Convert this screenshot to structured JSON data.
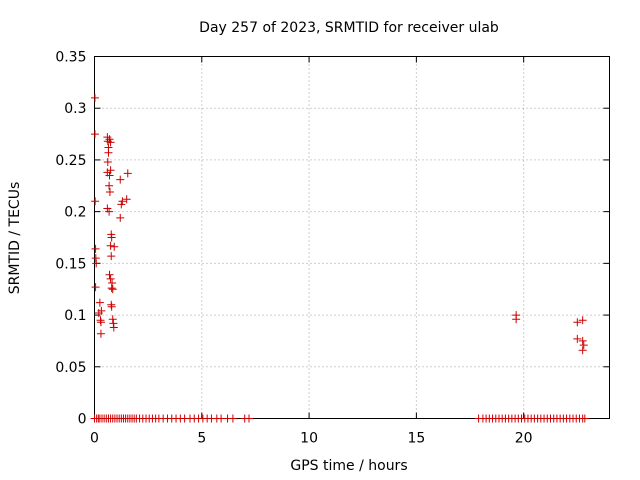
{
  "chart_data": {
    "type": "scatter",
    "title": "Day 257 of 2023, SRMTID for receiver ulab",
    "xlabel": "GPS time / hours",
    "ylabel": "SRMTID / TECUs",
    "xlim": [
      0,
      24
    ],
    "ylim": [
      0,
      0.35
    ],
    "xticks": [
      0,
      5,
      10,
      15,
      20
    ],
    "yticks": [
      0,
      0.05,
      0.1,
      0.15,
      0.2,
      0.25,
      0.3,
      0.35
    ],
    "ytick_labels": [
      "0",
      "0.05",
      "0.1",
      "0.15",
      "0.2",
      "0.25",
      "0.3",
      "0.35"
    ],
    "grid": true,
    "marker": "plus",
    "color": "#cc0000",
    "points": [
      [
        0.02,
        0.31
      ],
      [
        0.02,
        0.275
      ],
      [
        0.03,
        0.21
      ],
      [
        0.05,
        0.164
      ],
      [
        0.06,
        0.155
      ],
      [
        0.08,
        0.15
      ],
      [
        0.05,
        0.127
      ],
      [
        0.2,
        0.102
      ],
      [
        0.25,
        0.112
      ],
      [
        0.28,
        0.095
      ],
      [
        0.3,
        0.093
      ],
      [
        0.3,
        0.082
      ],
      [
        0.32,
        0.104
      ],
      [
        0.6,
        0.272
      ],
      [
        0.62,
        0.268
      ],
      [
        0.65,
        0.262
      ],
      [
        0.65,
        0.257
      ],
      [
        0.62,
        0.248
      ],
      [
        0.6,
        0.238
      ],
      [
        0.7,
        0.235
      ],
      [
        0.68,
        0.225
      ],
      [
        0.72,
        0.219
      ],
      [
        0.6,
        0.203
      ],
      [
        0.68,
        0.2
      ],
      [
        0.7,
        0.27
      ],
      [
        0.75,
        0.267
      ],
      [
        0.75,
        0.24
      ],
      [
        0.78,
        0.178
      ],
      [
        0.8,
        0.175
      ],
      [
        0.75,
        0.167
      ],
      [
        0.78,
        0.157
      ],
      [
        0.7,
        0.139
      ],
      [
        0.75,
        0.135
      ],
      [
        0.82,
        0.131
      ],
      [
        0.8,
        0.126
      ],
      [
        0.85,
        0.125
      ],
      [
        0.78,
        0.11
      ],
      [
        0.8,
        0.108
      ],
      [
        0.85,
        0.096
      ],
      [
        0.88,
        0.092
      ],
      [
        0.9,
        0.088
      ],
      [
        0.92,
        0.166
      ],
      [
        1.2,
        0.231
      ],
      [
        1.25,
        0.207
      ],
      [
        1.3,
        0.21
      ],
      [
        1.2,
        0.194
      ],
      [
        1.55,
        0.237
      ],
      [
        1.5,
        0.212
      ],
      [
        19.65,
        0.1
      ],
      [
        19.65,
        0.096
      ],
      [
        22.5,
        0.093
      ],
      [
        22.75,
        0.095
      ],
      [
        22.5,
        0.077
      ],
      [
        22.75,
        0.075
      ],
      [
        22.8,
        0.071
      ],
      [
        22.75,
        0.066
      ],
      [
        0.0,
        0
      ],
      [
        0.1,
        0
      ],
      [
        0.18,
        0
      ],
      [
        0.25,
        0
      ],
      [
        0.35,
        0
      ],
      [
        0.45,
        0
      ],
      [
        0.55,
        0
      ],
      [
        0.65,
        0
      ],
      [
        0.75,
        0
      ],
      [
        0.85,
        0
      ],
      [
        0.95,
        0
      ],
      [
        1.05,
        0
      ],
      [
        1.15,
        0
      ],
      [
        1.25,
        0
      ],
      [
        1.35,
        0
      ],
      [
        1.45,
        0
      ],
      [
        1.55,
        0
      ],
      [
        1.65,
        0
      ],
      [
        1.75,
        0
      ],
      [
        1.85,
        0
      ],
      [
        1.95,
        0
      ],
      [
        2.1,
        0
      ],
      [
        2.25,
        0
      ],
      [
        2.4,
        0
      ],
      [
        2.55,
        0
      ],
      [
        2.7,
        0
      ],
      [
        2.85,
        0
      ],
      [
        3.0,
        0
      ],
      [
        3.2,
        0
      ],
      [
        3.4,
        0
      ],
      [
        3.6,
        0
      ],
      [
        3.8,
        0
      ],
      [
        4.0,
        0
      ],
      [
        4.2,
        0
      ],
      [
        4.45,
        0
      ],
      [
        4.65,
        0
      ],
      [
        4.85,
        0
      ],
      [
        5.05,
        0
      ],
      [
        5.25,
        0
      ],
      [
        5.45,
        0
      ],
      [
        5.7,
        0
      ],
      [
        5.9,
        0
      ],
      [
        6.2,
        0
      ],
      [
        6.45,
        0
      ],
      [
        7.0,
        0
      ],
      [
        7.2,
        0
      ],
      [
        17.9,
        0
      ],
      [
        18.1,
        0
      ],
      [
        18.25,
        0
      ],
      [
        18.4,
        0
      ],
      [
        18.55,
        0
      ],
      [
        18.7,
        0
      ],
      [
        18.85,
        0
      ],
      [
        19.0,
        0
      ],
      [
        19.15,
        0
      ],
      [
        19.3,
        0
      ],
      [
        19.45,
        0
      ],
      [
        19.6,
        0
      ],
      [
        19.75,
        0
      ],
      [
        19.9,
        0
      ],
      [
        20.05,
        0
      ],
      [
        20.2,
        0
      ],
      [
        20.35,
        0
      ],
      [
        20.5,
        0
      ],
      [
        20.65,
        0
      ],
      [
        20.8,
        0
      ],
      [
        20.95,
        0
      ],
      [
        21.1,
        0
      ],
      [
        21.25,
        0
      ],
      [
        21.4,
        0
      ],
      [
        21.55,
        0
      ],
      [
        21.7,
        0
      ],
      [
        21.85,
        0
      ],
      [
        22.0,
        0
      ],
      [
        22.15,
        0
      ],
      [
        22.3,
        0
      ],
      [
        22.45,
        0
      ],
      [
        22.6,
        0
      ],
      [
        22.75,
        0
      ],
      [
        22.85,
        0
      ]
    ]
  }
}
